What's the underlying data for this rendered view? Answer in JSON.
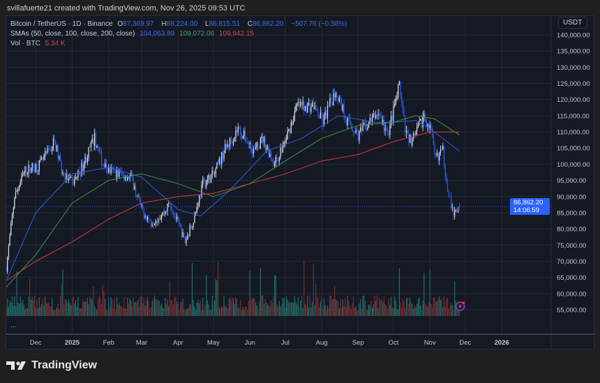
{
  "credit": "svillafuerte21 created with TradingView.com, Nov 26, 2025 09:53 UTC",
  "legend": {
    "symbol": "Bitcoin / TetherUS · 1D · Binance",
    "o_label": "O",
    "o": "87,369.97",
    "h_label": "H",
    "h": "88,224.00",
    "l_label": "L",
    "l": "86,815.51",
    "c_label": "C",
    "c": "86,862.20",
    "change": "−507.76 (−0.58%)",
    "sma_label": "SMAs (50, close, 100, close, 200, close)",
    "sma50": "104,063.89",
    "sma100": "109,072.06",
    "sma200": "109,942.15",
    "vol_label": "Vol · BTC",
    "vol": "5.34 K",
    "more": "..."
  },
  "currency": "USDT",
  "last_price": "86,862.20",
  "countdown": "14:06:59",
  "brand": "TradingView",
  "colors": {
    "up": "#e8e8ec",
    "down": "#2962ff",
    "sma50": "#2f5fe0",
    "sma100": "#3a9a4a",
    "sma200": "#d63a3c",
    "vol_up": "#1f6f6a",
    "vol_down": "#7a2c30",
    "accent": "#2962ff"
  },
  "chart_data": {
    "type": "candlestick",
    "ylim": [
      53000,
      142000
    ],
    "y_ticks": [
      "55,000.00",
      "60,000.00",
      "65,000.00",
      "70,000.00",
      "75,000.00",
      "80,000.00",
      "85,000.00",
      "90,000.00",
      "95,000.00",
      "100,000.00",
      "105,000.00",
      "110,000.00",
      "115,000.00",
      "120,000.00",
      "125,000.00",
      "130,000.00",
      "135,000.00",
      "140,000.00"
    ],
    "x_ticks": [
      "Dec",
      "2025",
      "Feb",
      "Mar",
      "Apr",
      "May",
      "Jun",
      "Jul",
      "Aug",
      "Sep",
      "Oct",
      "Nov",
      "Dec",
      "2026"
    ],
    "x_tick_dates": [
      "2024-12-01",
      "2025-01-01",
      "2025-02-01",
      "2025-03-01",
      "2025-04-01",
      "2025-05-01",
      "2025-06-01",
      "2025-07-01",
      "2025-08-01",
      "2025-09-01",
      "2025-10-01",
      "2025-11-01",
      "2025-12-01",
      "2026-01-01"
    ],
    "x_range": [
      "2024-11-06",
      "2026-02-12"
    ],
    "grid": true,
    "price_path": [
      [
        "2024-11-06",
        68000
      ],
      [
        "2024-11-13",
        90000
      ],
      [
        "2024-11-22",
        98000
      ],
      [
        "2024-12-05",
        100000
      ],
      [
        "2024-12-17",
        107000
      ],
      [
        "2024-12-24",
        97000
      ],
      [
        "2025-01-01",
        94000
      ],
      [
        "2025-01-08",
        98000
      ],
      [
        "2025-01-20",
        108000
      ],
      [
        "2025-01-27",
        100000
      ],
      [
        "2025-02-01",
        98000
      ],
      [
        "2025-02-20",
        96000
      ],
      [
        "2025-03-01",
        86000
      ],
      [
        "2025-03-09",
        82000
      ],
      [
        "2025-03-20",
        85000
      ],
      [
        "2025-03-25",
        88000
      ],
      [
        "2025-04-07",
        76000
      ],
      [
        "2025-04-15",
        84000
      ],
      [
        "2025-04-22",
        94000
      ],
      [
        "2025-05-02",
        97000
      ],
      [
        "2025-05-10",
        104000
      ],
      [
        "2025-05-22",
        111000
      ],
      [
        "2025-06-05",
        104000
      ],
      [
        "2025-06-12",
        108000
      ],
      [
        "2025-06-22",
        100000
      ],
      [
        "2025-07-01",
        107000
      ],
      [
        "2025-07-11",
        118000
      ],
      [
        "2025-07-25",
        118000
      ],
      [
        "2025-08-02",
        113000
      ],
      [
        "2025-08-13",
        123000
      ],
      [
        "2025-08-22",
        114000
      ],
      [
        "2025-09-01",
        109000
      ],
      [
        "2025-09-18",
        116000
      ],
      [
        "2025-09-26",
        109000
      ],
      [
        "2025-10-06",
        124000
      ],
      [
        "2025-10-11",
        110000
      ],
      [
        "2025-10-17",
        107000
      ],
      [
        "2025-10-27",
        115000
      ],
      [
        "2025-11-02",
        110000
      ],
      [
        "2025-11-05",
        102000
      ],
      [
        "2025-11-12",
        104000
      ],
      [
        "2025-11-15",
        95000
      ],
      [
        "2025-11-21",
        84000
      ],
      [
        "2025-11-26",
        86862
      ]
    ],
    "series": [
      {
        "name": "SMA 50",
        "points": [
          [
            "2024-11-06",
            64000
          ],
          [
            "2024-12-01",
            85000
          ],
          [
            "2025-01-01",
            97000
          ],
          [
            "2025-02-01",
            99000
          ],
          [
            "2025-03-01",
            96000
          ],
          [
            "2025-04-01",
            86000
          ],
          [
            "2025-04-20",
            84000
          ],
          [
            "2025-05-15",
            92000
          ],
          [
            "2025-06-15",
            104000
          ],
          [
            "2025-07-15",
            108000
          ],
          [
            "2025-08-15",
            115000
          ],
          [
            "2025-09-15",
            113000
          ],
          [
            "2025-10-01",
            113000
          ],
          [
            "2025-10-20",
            113500
          ],
          [
            "2025-11-01",
            111000
          ],
          [
            "2025-11-26",
            104064
          ]
        ]
      },
      {
        "name": "SMA 100",
        "points": [
          [
            "2024-11-06",
            62000
          ],
          [
            "2024-12-01",
            72000
          ],
          [
            "2025-01-01",
            88000
          ],
          [
            "2025-02-01",
            95000
          ],
          [
            "2025-03-01",
            97000
          ],
          [
            "2025-04-01",
            94000
          ],
          [
            "2025-05-01",
            90000
          ],
          [
            "2025-06-01",
            94000
          ],
          [
            "2025-07-01",
            101000
          ],
          [
            "2025-08-01",
            108000
          ],
          [
            "2025-09-01",
            112000
          ],
          [
            "2025-10-01",
            113000
          ],
          [
            "2025-10-20",
            115000
          ],
          [
            "2025-11-05",
            114000
          ],
          [
            "2025-11-26",
            109072
          ]
        ]
      },
      {
        "name": "SMA 200",
        "points": [
          [
            "2024-11-06",
            64000
          ],
          [
            "2024-12-01",
            70000
          ],
          [
            "2025-01-01",
            76000
          ],
          [
            "2025-02-01",
            83000
          ],
          [
            "2025-03-01",
            88000
          ],
          [
            "2025-04-01",
            90000
          ],
          [
            "2025-05-01",
            91000
          ],
          [
            "2025-06-01",
            94000
          ],
          [
            "2025-07-01",
            97000
          ],
          [
            "2025-08-01",
            101000
          ],
          [
            "2025-09-01",
            103000
          ],
          [
            "2025-10-01",
            107000
          ],
          [
            "2025-11-01",
            110000
          ],
          [
            "2025-11-26",
            109942
          ]
        ]
      }
    ]
  }
}
